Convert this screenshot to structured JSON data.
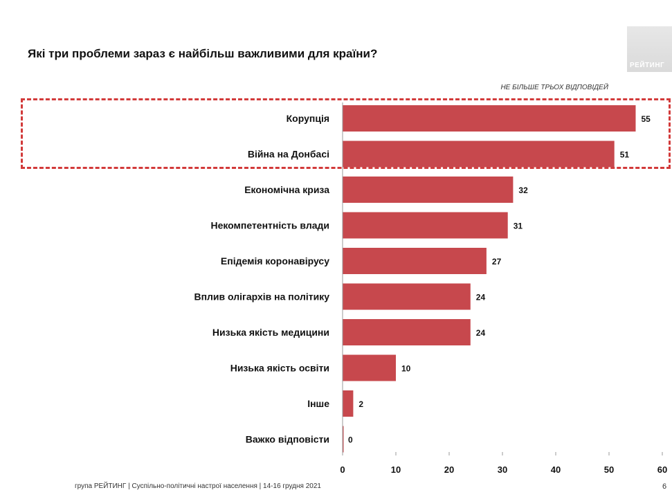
{
  "title": "Які три проблеми зараз є найбільш важливими для країни?",
  "note": "НЕ БІЛЬШЕ ТРЬОХ ВІДПОВІДЕЙ",
  "logo_text": "РЕЙТИНГ",
  "footer": "група РЕЙТИНГ | Суспільно-політичні настрої населення | 14-16 грудня 2021",
  "page_number": "6",
  "colors": {
    "bar": "#c7484d",
    "highlight": "#d23a3a"
  },
  "chart_data": {
    "type": "bar",
    "orientation": "horizontal",
    "categories": [
      "Корупція",
      "Війна на Донбасі",
      "Економічна криза",
      "Некомпетентність влади",
      "Епідемія коронавірусу",
      "Вплив олігархів на політику",
      "Низька якість медицини",
      "Низька якість освіти",
      "Інше",
      "Важко відповісти"
    ],
    "values": [
      55,
      51,
      32,
      31,
      27,
      24,
      24,
      10,
      2,
      0
    ],
    "xlim": [
      0,
      60
    ],
    "xticks": [
      0,
      10,
      20,
      30,
      40,
      50,
      60
    ],
    "highlighted_categories": [
      "Корупція",
      "Війна на Донбасі"
    ],
    "grid": false,
    "legend": "none"
  }
}
